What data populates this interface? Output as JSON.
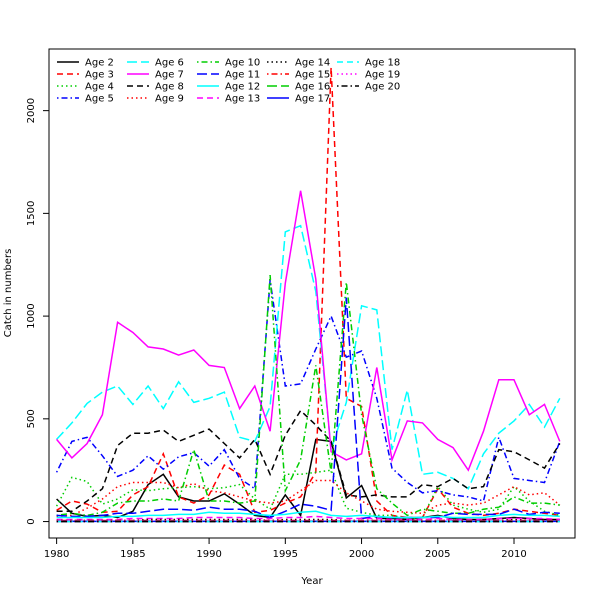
{
  "chart_data": {
    "type": "line",
    "title": "",
    "xlabel": "Year",
    "ylabel": "Catch in numbers",
    "xlim": [
      1979.5,
      2014
    ],
    "ylim": [
      -80,
      2300
    ],
    "x_ticks": [
      1980,
      1985,
      1990,
      1995,
      2000,
      2005,
      2010
    ],
    "y_ticks": [
      0,
      500,
      1000,
      1500,
      2000
    ],
    "grid": false,
    "legend": "top-left",
    "x": [
      1980,
      1981,
      1982,
      1983,
      1984,
      1985,
      1986,
      1987,
      1988,
      1989,
      1990,
      1991,
      1992,
      1993,
      1994,
      1995,
      1996,
      1997,
      1998,
      1999,
      2000,
      2001,
      2002,
      2003,
      2004,
      2005,
      2006,
      2007,
      2008,
      2009,
      2010,
      2011,
      2012,
      2013
    ],
    "series": [
      {
        "name": "Age 2",
        "color": "#000000",
        "dash": "solid",
        "values": [
          110,
          40,
          25,
          30,
          20,
          50,
          180,
          230,
          120,
          100,
          100,
          135,
          85,
          30,
          20,
          130,
          30,
          400,
          390,
          115,
          175,
          15,
          15,
          10,
          20,
          30,
          15,
          10,
          10,
          15,
          20,
          15,
          10,
          10
        ]
      },
      {
        "name": "Age 3",
        "color": "#ff0000",
        "dash": "dashed",
        "values": [
          55,
          100,
          85,
          45,
          50,
          130,
          170,
          330,
          120,
          90,
          130,
          275,
          230,
          45,
          55,
          90,
          120,
          240,
          2210,
          600,
          560,
          100,
          30,
          20,
          20,
          160,
          70,
          40,
          30,
          40,
          60,
          50,
          40,
          30
        ]
      },
      {
        "name": "Age 4",
        "color": "#00cd00",
        "dash": "dotted",
        "values": [
          75,
          215,
          195,
          85,
          110,
          155,
          150,
          160,
          165,
          170,
          160,
          165,
          180,
          110,
          60,
          230,
          230,
          240,
          250,
          65,
          45,
          30,
          30,
          15,
          20,
          170,
          80,
          60,
          45,
          60,
          170,
          100,
          50,
          30
        ]
      },
      {
        "name": "Age 5",
        "color": "#0000ff",
        "dash": "dotdash",
        "values": [
          240,
          390,
          410,
          320,
          220,
          250,
          320,
          255,
          315,
          335,
          270,
          350,
          210,
          160,
          1175,
          660,
          670,
          840,
          1000,
          800,
          830,
          600,
          260,
          190,
          140,
          150,
          130,
          120,
          100,
          410,
          210,
          200,
          190,
          390
        ]
      },
      {
        "name": "Age 6",
        "color": "#00ffff",
        "dash": "longdash",
        "values": [
          400,
          480,
          575,
          630,
          660,
          570,
          660,
          550,
          680,
          580,
          600,
          630,
          410,
          390,
          560,
          1410,
          1440,
          1120,
          350,
          580,
          1050,
          1030,
          350,
          640,
          230,
          240,
          210,
          160,
          330,
          430,
          490,
          570,
          460,
          600
        ]
      },
      {
        "name": "Age 7",
        "color": "#ff00ff",
        "dash": "solid",
        "values": [
          400,
          310,
          380,
          520,
          970,
          920,
          850,
          840,
          810,
          835,
          760,
          750,
          550,
          660,
          440,
          1160,
          1610,
          1180,
          340,
          300,
          330,
          750,
          300,
          490,
          480,
          400,
          360,
          250,
          440,
          690,
          690,
          520,
          570,
          390
        ]
      },
      {
        "name": "Age 8",
        "color": "#000000",
        "dash": "dashed",
        "values": [
          50,
          50,
          100,
          160,
          370,
          430,
          430,
          445,
          390,
          420,
          450,
          380,
          310,
          400,
          230,
          420,
          540,
          470,
          390,
          130,
          120,
          130,
          120,
          120,
          180,
          170,
          210,
          160,
          170,
          350,
          340,
          300,
          260,
          380
        ]
      },
      {
        "name": "Age 9",
        "color": "#ff0000",
        "dash": "dotted",
        "values": [
          25,
          30,
          65,
          110,
          170,
          190,
          190,
          190,
          165,
          185,
          150,
          140,
          120,
          100,
          90,
          100,
          150,
          200,
          200,
          140,
          100,
          60,
          50,
          45,
          40,
          80,
          90,
          80,
          90,
          130,
          170,
          130,
          140,
          80
        ]
      },
      {
        "name": "Age 10",
        "color": "#00cd00",
        "dash": "dotdash",
        "values": [
          30,
          40,
          30,
          45,
          90,
          100,
          100,
          110,
          100,
          350,
          100,
          100,
          90,
          100,
          1200,
          150,
          300,
          760,
          240,
          1165,
          520,
          160,
          90,
          30,
          60,
          50,
          40,
          40,
          60,
          70,
          120,
          90,
          90,
          80
        ]
      },
      {
        "name": "Age 11",
        "color": "#0000ff",
        "dash": "longdash",
        "values": [
          30,
          25,
          25,
          30,
          40,
          40,
          50,
          60,
          60,
          55,
          70,
          60,
          60,
          50,
          20,
          50,
          85,
          75,
          55,
          1090,
          15,
          25,
          20,
          20,
          20,
          20,
          40,
          35,
          35,
          35,
          60,
          35,
          45,
          40
        ]
      },
      {
        "name": "Age 12",
        "color": "#00ffff",
        "dash": "solid",
        "values": [
          20,
          20,
          20,
          20,
          25,
          25,
          30,
          30,
          35,
          35,
          45,
          40,
          40,
          35,
          30,
          35,
          45,
          50,
          30,
          25,
          30,
          25,
          20,
          20,
          20,
          25,
          20,
          20,
          20,
          30,
          35,
          30,
          30,
          25
        ]
      },
      {
        "name": "Age 13",
        "color": "#ff00ff",
        "dash": "dashed",
        "values": [
          10,
          10,
          10,
          10,
          10,
          15,
          15,
          15,
          15,
          20,
          20,
          20,
          20,
          15,
          15,
          20,
          20,
          25,
          20,
          15,
          15,
          15,
          10,
          10,
          10,
          15,
          10,
          10,
          10,
          15,
          15,
          15,
          15,
          10
        ]
      },
      {
        "name": "Age 14",
        "color": "#000000",
        "dash": "dotted",
        "values": [
          5,
          5,
          5,
          5,
          5,
          5,
          10,
          10,
          10,
          10,
          10,
          10,
          10,
          10,
          5,
          10,
          10,
          10,
          10,
          5,
          5,
          5,
          5,
          5,
          5,
          5,
          5,
          5,
          5,
          5,
          10,
          5,
          5,
          5
        ]
      },
      {
        "name": "Age 15",
        "color": "#ff0000",
        "dash": "dotdash",
        "values": [
          5,
          5,
          5,
          5,
          5,
          5,
          5,
          5,
          5,
          5,
          5,
          5,
          5,
          5,
          5,
          5,
          5,
          5,
          5,
          5,
          5,
          5,
          5,
          5,
          5,
          5,
          5,
          5,
          5,
          5,
          5,
          5,
          5,
          5
        ]
      },
      {
        "name": "Age 16",
        "color": "#00cd00",
        "dash": "longdash",
        "values": [
          2,
          2,
          2,
          2,
          2,
          2,
          2,
          2,
          2,
          2,
          2,
          2,
          2,
          2,
          2,
          2,
          2,
          2,
          2,
          2,
          2,
          2,
          2,
          2,
          2,
          2,
          2,
          2,
          2,
          2,
          2,
          2,
          2,
          2
        ]
      },
      {
        "name": "Age 17",
        "color": "#0000ff",
        "dash": "solid",
        "values": [
          1,
          1,
          1,
          1,
          1,
          1,
          1,
          1,
          1,
          1,
          1,
          1,
          1,
          1,
          1,
          1,
          1,
          1,
          1,
          1,
          1,
          1,
          1,
          1,
          1,
          1,
          1,
          1,
          1,
          1,
          1,
          1,
          1,
          1
        ]
      },
      {
        "name": "Age 18",
        "color": "#00ffff",
        "dash": "dashed",
        "values": [
          0,
          0,
          0,
          0,
          0,
          0,
          0,
          0,
          0,
          0,
          0,
          0,
          0,
          0,
          0,
          0,
          0,
          0,
          0,
          0,
          0,
          0,
          0,
          0,
          0,
          0,
          0,
          0,
          0,
          0,
          0,
          0,
          0,
          0
        ]
      },
      {
        "name": "Age 19",
        "color": "#ff00ff",
        "dash": "dotted",
        "values": [
          0,
          0,
          0,
          0,
          0,
          0,
          0,
          0,
          0,
          0,
          0,
          0,
          0,
          0,
          0,
          0,
          0,
          0,
          0,
          0,
          0,
          0,
          0,
          0,
          0,
          0,
          0,
          0,
          0,
          0,
          0,
          0,
          0,
          0
        ]
      },
      {
        "name": "Age 20",
        "color": "#000000",
        "dash": "dotdash",
        "values": [
          0,
          0,
          0,
          0,
          0,
          0,
          0,
          0,
          0,
          0,
          0,
          0,
          0,
          0,
          0,
          0,
          0,
          0,
          0,
          0,
          0,
          0,
          0,
          0,
          0,
          0,
          0,
          0,
          0,
          0,
          0,
          0,
          0,
          0
        ]
      }
    ]
  }
}
